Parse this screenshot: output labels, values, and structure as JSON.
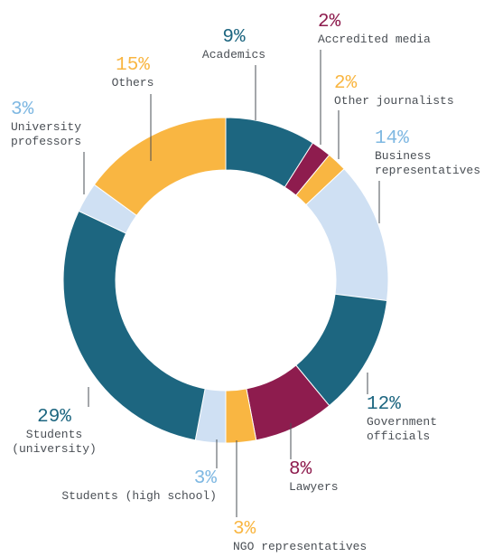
{
  "chart_data": {
    "type": "donut",
    "categories": [
      "Academics",
      "Accredited media",
      "Other journalists",
      "Business representatives",
      "Government officials",
      "Lawyers",
      "NGO representatives",
      "Students (high school)",
      "Students (university)",
      "University professors",
      "Others"
    ],
    "values": [
      9,
      2,
      2,
      14,
      12,
      8,
      3,
      3,
      29,
      3,
      15
    ],
    "value_labels": [
      "9%",
      "2%",
      "2%",
      "14%",
      "12%",
      "8%",
      "3%",
      "3%",
      "29%",
      "3%",
      "15%"
    ],
    "colors": [
      "#1d6680",
      "#8e1c4e",
      "#f9b642",
      "#cfe0f3",
      "#1d6680",
      "#8e1c4e",
      "#f9b642",
      "#cfe0f3",
      "#1d6680",
      "#cfe0f3",
      "#f9b642"
    ],
    "label_colors": [
      "#1d6680",
      "#8e1c4e",
      "#f9b642",
      "#7fb8e2",
      "#1d6680",
      "#8e1c4e",
      "#f9b642",
      "#7fb8e2",
      "#1d6680",
      "#7fb8e2",
      "#f9b642"
    ]
  }
}
